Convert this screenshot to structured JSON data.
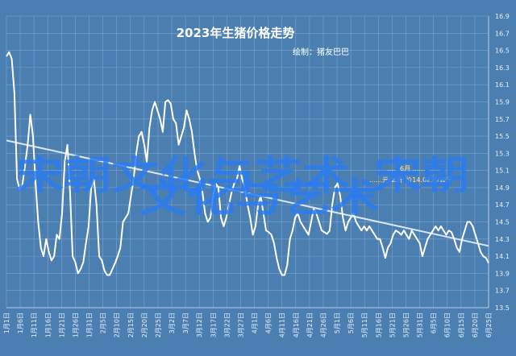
{
  "chart_data": {
    "type": "line",
    "title": "2023年生猪价格走势",
    "subtitle": "绘制：猪友巴巴",
    "annotation_lines": [
      "……6月 ……",
      "……元/公斤 价14.02元/公斤"
    ],
    "watermark_lines": [
      "宋朝文化与艺术_宋朝",
      "文化与艺术"
    ],
    "ylim": [
      13.5,
      16.9
    ],
    "yticks": [
      16.9,
      16.7,
      16.5,
      16.3,
      16.1,
      15.9,
      15.7,
      15.5,
      15.3,
      15.1,
      14.9,
      14.7,
      14.5,
      14.3,
      14.1,
      13.9,
      13.7,
      13.5
    ],
    "xticks": [
      "1月1日",
      "1月6日",
      "1月11日",
      "1月16日",
      "1月21日",
      "1月26日",
      "1月31日",
      "2月5日",
      "2月10日",
      "2月15日",
      "2月20日",
      "2月25日",
      "3月2日",
      "3月7日",
      "3月12日",
      "3月17日",
      "3月22日",
      "3月27日",
      "4月1日",
      "4月6日",
      "4月11日",
      "4月16日",
      "4月21日",
      "4月26日",
      "5月1日",
      "5月6日",
      "5月11日",
      "5月16日",
      "5月21日",
      "5月26日",
      "5月31日",
      "6月5日",
      "6月10日",
      "6月15日",
      "6月20日",
      "6月25日"
    ],
    "series": [
      {
        "values": [
          16.43,
          16.48,
          16.4,
          16.0,
          15.0,
          14.88,
          14.93,
          15.15,
          15.4,
          15.75,
          15.5,
          14.95,
          14.5,
          14.2,
          14.1,
          14.3,
          14.15,
          14.05,
          14.1,
          14.35,
          14.3,
          14.6,
          15.2,
          15.4,
          14.85,
          14.1,
          14.03,
          13.9,
          13.95,
          14.03,
          14.25,
          14.45,
          14.9,
          15.0,
          14.7,
          14.1,
          14.05,
          13.93,
          13.88,
          13.88,
          13.95,
          14.02,
          14.1,
          14.2,
          14.5,
          14.55,
          14.6,
          14.8,
          15.0,
          15.3,
          15.5,
          15.55,
          15.4,
          15.2,
          15.6,
          15.8,
          15.9,
          15.8,
          15.7,
          15.55,
          15.9,
          15.92,
          15.88,
          15.7,
          15.65,
          15.4,
          15.5,
          15.6,
          15.8,
          15.7,
          15.55,
          15.3,
          15.1,
          15.0,
          14.85,
          14.6,
          14.5,
          14.55,
          14.8,
          14.95,
          14.9,
          14.55,
          14.45,
          14.55,
          14.7,
          14.85,
          14.95,
          15.0,
          15.15,
          15.0,
          14.9,
          14.7,
          14.55,
          14.35,
          14.45,
          14.7,
          14.8,
          14.6,
          14.4,
          14.38,
          14.35,
          14.25,
          14.08,
          13.95,
          13.88,
          13.88,
          14.0,
          14.3,
          14.4,
          14.55,
          14.6,
          14.5,
          14.45,
          14.4,
          14.35,
          14.5,
          14.65,
          14.6,
          14.5,
          14.4,
          14.38,
          14.36,
          14.4,
          14.7,
          14.9,
          14.95,
          14.8,
          14.55,
          14.4,
          14.5,
          14.55,
          14.6,
          14.5,
          14.45,
          14.4,
          14.45,
          14.4,
          14.45,
          14.4,
          14.35,
          14.3,
          14.3,
          14.2,
          14.08,
          14.2,
          14.25,
          14.35,
          14.4,
          14.38,
          14.35,
          14.4,
          14.35,
          14.3,
          14.4,
          14.35,
          14.3,
          14.25,
          14.1,
          14.2,
          14.3,
          14.35,
          14.4,
          14.45,
          14.4,
          14.45,
          14.4,
          14.35,
          14.4,
          14.38,
          14.3,
          14.2,
          14.15,
          14.3,
          14.4,
          14.5,
          14.5,
          14.45,
          14.35,
          14.25,
          14.15,
          14.1,
          14.08,
          14.02
        ]
      }
    ],
    "trendline": [
      15.45,
      14.22
    ]
  }
}
